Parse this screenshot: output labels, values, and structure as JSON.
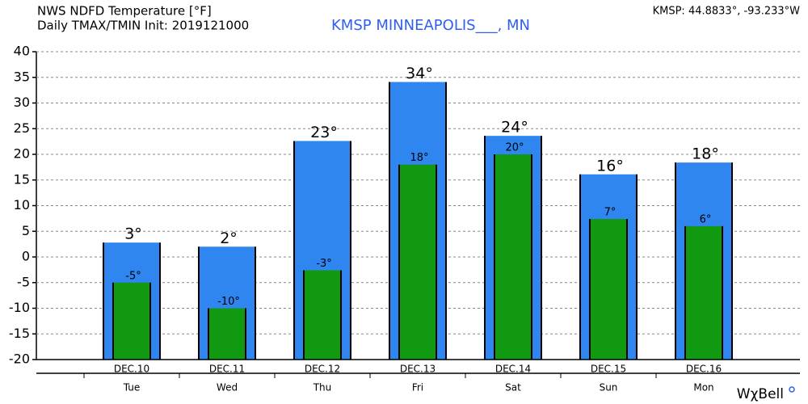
{
  "chart_data": {
    "type": "bar",
    "title": "NWS NDFD Temperature [°F]",
    "subtitle": "Daily TMAX/TMIN Init: 2019121000",
    "station": "KMSP MINNEAPOLIS___, MN",
    "coords": "KMSP: 44.8833°, -93.233°W",
    "logo": "WχBell",
    "categories": [
      "DEC.10",
      "DEC.11",
      "DEC.12",
      "DEC.13",
      "DEC.14",
      "DEC.15",
      "DEC.16"
    ],
    "weekdays": [
      "Tue",
      "Wed",
      "Thu",
      "Fri",
      "Sat",
      "Sun",
      "Mon"
    ],
    "series": [
      {
        "color": "#2f86f0",
        "values": [
          2.8,
          2,
          22.6,
          34.1,
          23.6,
          16.1,
          18.4
        ],
        "value_labels": [
          "3°",
          "2°",
          "23°",
          "34°",
          "24°",
          "16°",
          "18°"
        ]
      },
      {
        "color": "#119a11",
        "values": [
          -5,
          -10,
          -2.6,
          18,
          20,
          7.4,
          6
        ],
        "value_labels": [
          "-5°",
          "-10°",
          "-3°",
          "18°",
          "20°",
          "7°",
          "6°"
        ]
      }
    ],
    "ylim": [
      -20,
      40
    ],
    "yticks": [
      -20,
      -15,
      -10,
      -5,
      0,
      5,
      10,
      15,
      20,
      25,
      30,
      35,
      40
    ],
    "grid": true
  }
}
